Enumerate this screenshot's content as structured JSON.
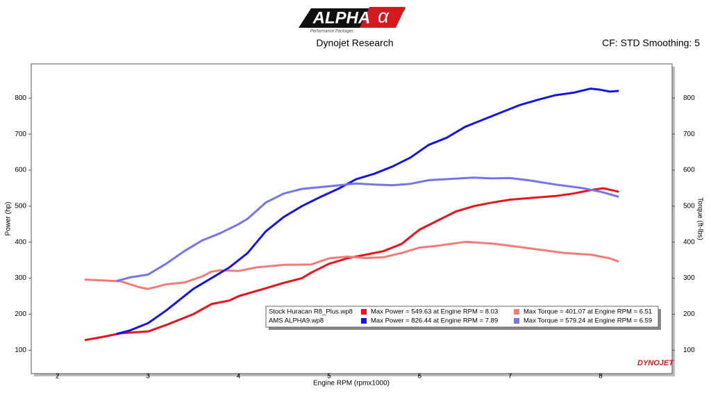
{
  "header": {
    "logo": "ALPHA",
    "logo_symbol": "α",
    "tagline": "Performance Packages",
    "brand": "DYNOJET"
  },
  "chart_data": {
    "type": "line",
    "title": "Dynojet Research",
    "subtitle": "CF: STD Smoothing: 5",
    "x_label": "Engine RPM (rpmx1000)",
    "y_label": "Power (hp)",
    "y2_label": "Torque (ft-lbs)",
    "xlim": [
      1.71,
      8.79
    ],
    "xticks": [
      2,
      3,
      4,
      5,
      6,
      7,
      8
    ],
    "ylim": [
      35,
      895
    ],
    "yticks": [
      100,
      200,
      300,
      400,
      500,
      600,
      700,
      800
    ],
    "y2lim": [
      35,
      895
    ],
    "y2ticks": [
      100,
      200,
      300,
      400,
      500,
      600,
      700,
      800
    ],
    "grid": false,
    "runs": [
      "Stock Huracan R8_Plus.wp8",
      "AMS ALPHA9.wp8"
    ],
    "series": [
      {
        "name": "Max Power = 549.63 at Engine RPM = 8.03",
        "color": "#e8131b",
        "axis": "y",
        "run": 0,
        "x": [
          2.3,
          2.5,
          2.7,
          3.0,
          3.2,
          3.5,
          3.7,
          3.9,
          4.0,
          4.3,
          4.5,
          4.7,
          4.8,
          5.0,
          5.2,
          5.4,
          5.6,
          5.8,
          6.0,
          6.2,
          6.4,
          6.6,
          6.8,
          7.0,
          7.2,
          7.5,
          7.7,
          7.9,
          8.03,
          8.2
        ],
        "values": [
          128,
          137,
          147,
          152,
          170,
          200,
          228,
          238,
          250,
          272,
          287,
          300,
          315,
          340,
          355,
          365,
          375,
          395,
          435,
          460,
          485,
          500,
          510,
          518,
          522,
          528,
          535,
          545,
          549.63,
          540
        ]
      },
      {
        "name": "Max Torque = 401.07 at Engine RPM = 6.51",
        "color": "#f47b78",
        "axis": "y2",
        "run": 0,
        "x": [
          2.3,
          2.5,
          2.7,
          2.9,
          3.0,
          3.2,
          3.4,
          3.6,
          3.7,
          3.8,
          4.0,
          4.2,
          4.5,
          4.8,
          5.0,
          5.2,
          5.4,
          5.6,
          5.8,
          6.0,
          6.2,
          6.51,
          6.8,
          7.0,
          7.3,
          7.6,
          7.9,
          8.1,
          8.2
        ],
        "values": [
          296,
          294,
          291,
          275,
          270,
          283,
          288,
          305,
          318,
          322,
          320,
          330,
          337,
          338,
          355,
          360,
          356,
          358,
          370,
          385,
          390,
          401.07,
          396,
          390,
          380,
          370,
          365,
          355,
          346
        ]
      },
      {
        "name": "Max Power = 826.44 at Engine RPM = 7.89",
        "color": "#1414e6",
        "axis": "y",
        "run": 1,
        "x": [
          2.65,
          2.8,
          3.0,
          3.2,
          3.5,
          3.7,
          3.9,
          4.1,
          4.3,
          4.5,
          4.7,
          4.9,
          5.1,
          5.3,
          5.5,
          5.7,
          5.9,
          6.1,
          6.3,
          6.5,
          6.7,
          6.9,
          7.1,
          7.3,
          7.5,
          7.7,
          7.89,
          8.0,
          8.1,
          8.2
        ],
        "values": [
          145,
          155,
          175,
          210,
          270,
          300,
          330,
          370,
          430,
          470,
          500,
          525,
          548,
          575,
          590,
          610,
          635,
          670,
          690,
          720,
          740,
          760,
          780,
          795,
          808,
          815,
          826.44,
          823,
          818,
          820
        ]
      },
      {
        "name": "Max Torque = 579.24 at Engine RPM = 6.59",
        "color": "#7474ee",
        "axis": "y2",
        "run": 1,
        "x": [
          2.65,
          2.8,
          3.0,
          3.2,
          3.4,
          3.6,
          3.8,
          4.0,
          4.1,
          4.3,
          4.5,
          4.7,
          5.0,
          5.3,
          5.5,
          5.7,
          5.9,
          6.1,
          6.3,
          6.59,
          6.8,
          7.0,
          7.2,
          7.5,
          7.8,
          8.0,
          8.2
        ],
        "values": [
          292,
          302,
          310,
          340,
          375,
          405,
          425,
          450,
          465,
          510,
          535,
          548,
          555,
          563,
          560,
          558,
          562,
          572,
          575,
          579.24,
          577,
          578,
          572,
          560,
          550,
          540,
          526
        ]
      }
    ]
  }
}
